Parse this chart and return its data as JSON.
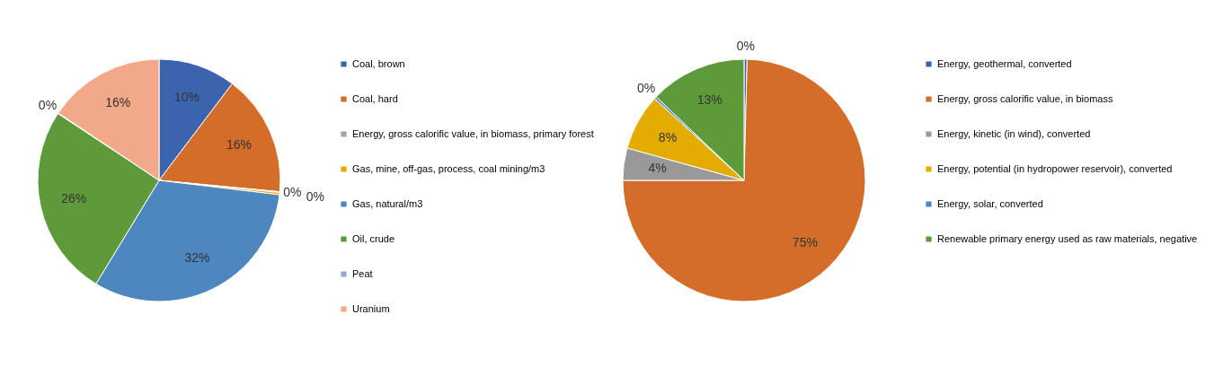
{
  "chart_data": [
    {
      "type": "pie",
      "categories": [
        "Coal, brown",
        "Coal, hard",
        "Energy, gross calorific value, in biomass, primary forest",
        "Gas, mine, off-gas, process, coal mining/m3",
        "Gas, natural/m3",
        "Oil, crude",
        "Peat",
        "Uranium"
      ],
      "values": [
        10.3,
        16.2,
        0.1,
        0.3,
        31.8,
        25.6,
        0.1,
        15.6
      ],
      "value_labels": [
        "10%",
        "16%",
        "0%",
        "0%",
        "32%",
        "26%",
        "0%",
        "16%"
      ],
      "colors": [
        "#3c63ae",
        "#d46d2a",
        "#a5a5a5",
        "#e5ac00",
        "#4e87c0",
        "#5f9a3a",
        "#91a8d8",
        "#f2a98a"
      ],
      "legend": "right"
    },
    {
      "type": "pie",
      "categories": [
        "Energy, geothermal, converted",
        "Energy, gross calorific value, in biomass",
        "Energy, kinetic (in wind), converted",
        "Energy, potential (in hydropower reservoir), converted",
        "Energy, solar, converted",
        "Renewable primary energy used as raw materials, negative"
      ],
      "values": [
        0.4,
        74.6,
        4.3,
        7.5,
        0.3,
        12.9
      ],
      "value_labels": [
        "0%",
        "75%",
        "4%",
        "8%",
        "0%",
        "13%"
      ],
      "colors": [
        "#3c63ae",
        "#d46d2a",
        "#999999",
        "#e5ac00",
        "#4e87c0",
        "#5f9a3a"
      ],
      "legend": "right"
    }
  ]
}
